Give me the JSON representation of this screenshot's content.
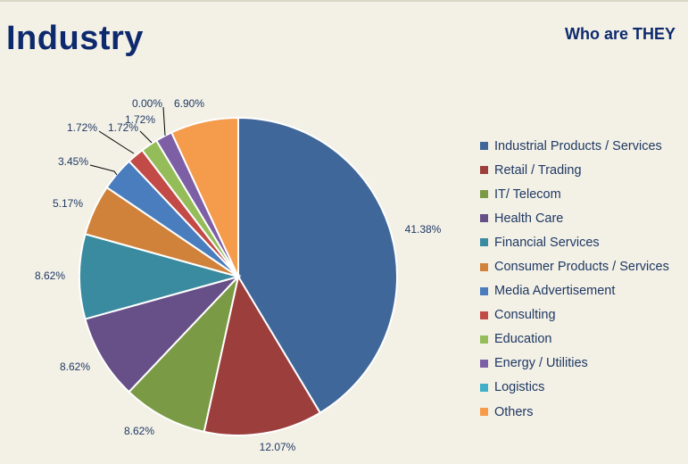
{
  "header": {
    "title": "Industry",
    "subtitle": "Who are THEY"
  },
  "chart_data": {
    "type": "pie",
    "categories": [
      "Industrial Products / Services",
      "Retail / Trading",
      "IT/ Telecom",
      "Health Care",
      "Financial Services",
      "Consumer Products / Services",
      "Media Advertisement",
      "Consulting",
      "Education",
      "Energy / Utilities",
      "Logistics",
      "Others"
    ],
    "values": [
      41.38,
      12.07,
      8.62,
      8.62,
      8.62,
      5.17,
      3.45,
      1.72,
      1.72,
      1.72,
      0.0,
      6.9
    ],
    "labels": [
      "41.38%",
      "12.07%",
      "8.62%",
      "8.62%",
      "8.62%",
      "5.17%",
      "3.45%",
      "1.72%",
      "1.72%",
      "1.72%",
      "0.00%",
      "6.90%"
    ],
    "colors": [
      "#3f679a",
      "#9c3e3c",
      "#7b9a45",
      "#674f87",
      "#3a8ba0",
      "#d0823a",
      "#4a7dbd",
      "#c24a47",
      "#94bd5a",
      "#7d5fa5",
      "#3fb0c8",
      "#f59b4c"
    ],
    "legend_position": "right",
    "start_angle_deg": 0,
    "direction": "clockwise"
  }
}
